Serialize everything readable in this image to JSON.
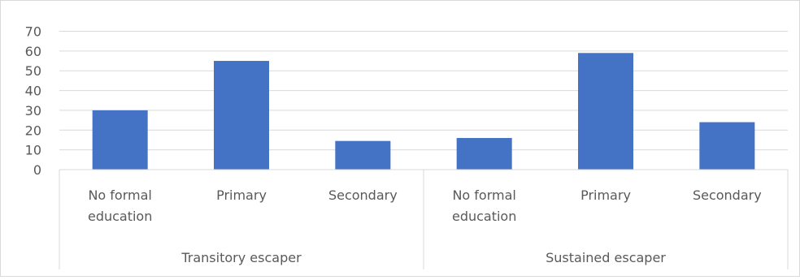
{
  "chart_data": {
    "type": "bar",
    "groups": [
      {
        "label": "Transitory escaper",
        "categories": [
          "No formal education",
          "Primary",
          "Secondary"
        ],
        "values": [
          30,
          55,
          14.5
        ]
      },
      {
        "label": "Sustained escaper",
        "categories": [
          "No formal education",
          "Primary",
          "Secondary"
        ],
        "values": [
          16,
          59,
          24
        ]
      }
    ],
    "category_label_lines": {
      "No formal education": [
        "No formal",
        "education"
      ],
      "Primary": [
        "Primary"
      ],
      "Secondary": [
        "Secondary"
      ]
    },
    "yticks": [
      "0",
      "10",
      "20",
      "30",
      "40",
      "50",
      "60",
      "70"
    ],
    "ylim": [
      0,
      70
    ],
    "grid": true,
    "colors": {
      "bar": "#4472c4",
      "grid": "#d9d9d9",
      "text": "#595959"
    }
  }
}
